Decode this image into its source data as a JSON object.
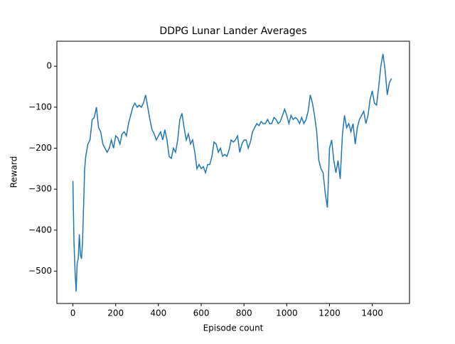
{
  "chart_data": {
    "type": "line",
    "title": "DDPG Lunar Lander Averages",
    "x_label": "Episode count",
    "y_label": "Reward",
    "xlim": [
      -75,
      1574
    ],
    "ylim": [
      -579,
      61
    ],
    "xticks": [
      0,
      200,
      400,
      600,
      800,
      1000,
      1200,
      1400
    ],
    "yticks": [
      {
        "value": -500,
        "label": "−500"
      },
      {
        "value": -400,
        "label": "−400"
      },
      {
        "value": -300,
        "label": "−300"
      },
      {
        "value": -200,
        "label": "−200"
      },
      {
        "value": -100,
        "label": "−100"
      },
      0
    ],
    "grid": false,
    "series": [
      {
        "color": "#1f77b4",
        "x": [
          0,
          5,
          10,
          15,
          20,
          25,
          30,
          35,
          40,
          45,
          50,
          55,
          60,
          70,
          80,
          90,
          100,
          110,
          120,
          130,
          140,
          150,
          160,
          170,
          180,
          190,
          200,
          210,
          220,
          230,
          240,
          250,
          260,
          270,
          280,
          290,
          300,
          310,
          320,
          330,
          340,
          350,
          360,
          370,
          380,
          390,
          400,
          410,
          420,
          430,
          440,
          450,
          460,
          470,
          480,
          490,
          500,
          510,
          520,
          530,
          540,
          550,
          560,
          570,
          580,
          590,
          600,
          610,
          620,
          630,
          640,
          650,
          660,
          670,
          680,
          690,
          700,
          710,
          720,
          730,
          740,
          750,
          760,
          770,
          780,
          790,
          800,
          810,
          820,
          830,
          840,
          850,
          860,
          870,
          880,
          890,
          900,
          910,
          920,
          930,
          940,
          950,
          960,
          970,
          980,
          990,
          1000,
          1010,
          1020,
          1030,
          1040,
          1050,
          1060,
          1070,
          1080,
          1090,
          1100,
          1110,
          1120,
          1130,
          1140,
          1150,
          1160,
          1170,
          1180,
          1190,
          1200,
          1210,
          1220,
          1230,
          1240,
          1250,
          1260,
          1270,
          1280,
          1290,
          1300,
          1310,
          1320,
          1330,
          1340,
          1350,
          1360,
          1370,
          1380,
          1390,
          1400,
          1410,
          1420,
          1430,
          1440,
          1450,
          1460,
          1470,
          1480,
          1490
        ],
        "values": [
          -280,
          -430,
          -500,
          -550,
          -480,
          -470,
          -410,
          -460,
          -470,
          -430,
          -340,
          -250,
          -220,
          -190,
          -180,
          -130,
          -125,
          -100,
          -150,
          -160,
          -190,
          -200,
          -210,
          -200,
          -180,
          -200,
          -170,
          -175,
          -190,
          -165,
          -160,
          -170,
          -140,
          -120,
          -100,
          -90,
          -100,
          -95,
          -100,
          -90,
          -70,
          -100,
          -130,
          -155,
          -165,
          -180,
          -170,
          -160,
          -180,
          -155,
          -180,
          -220,
          -225,
          -200,
          -210,
          -180,
          -130,
          -115,
          -150,
          -180,
          -165,
          -190,
          -180,
          -210,
          -250,
          -240,
          -250,
          -245,
          -260,
          -240,
          -240,
          -220,
          -185,
          -190,
          -210,
          -200,
          -220,
          -215,
          -220,
          -205,
          -180,
          -185,
          -180,
          -170,
          -210,
          -190,
          -180,
          -180,
          -200,
          -185,
          -160,
          -150,
          -140,
          -145,
          -135,
          -140,
          -140,
          -130,
          -140,
          -140,
          -125,
          -130,
          -140,
          -135,
          -120,
          -105,
          -120,
          -140,
          -120,
          -130,
          -125,
          -130,
          -140,
          -125,
          -140,
          -130,
          -110,
          -70,
          -90,
          -120,
          -160,
          -230,
          -250,
          -260,
          -310,
          -345,
          -200,
          -180,
          -230,
          -260,
          -230,
          -275,
          -170,
          -120,
          -150,
          -140,
          -160,
          -140,
          -190,
          -150,
          -130,
          -120,
          -110,
          -140,
          -120,
          -80,
          -60,
          -90,
          -95,
          -50,
          0,
          30,
          -10,
          -70,
          -40,
          -30
        ]
      }
    ]
  }
}
